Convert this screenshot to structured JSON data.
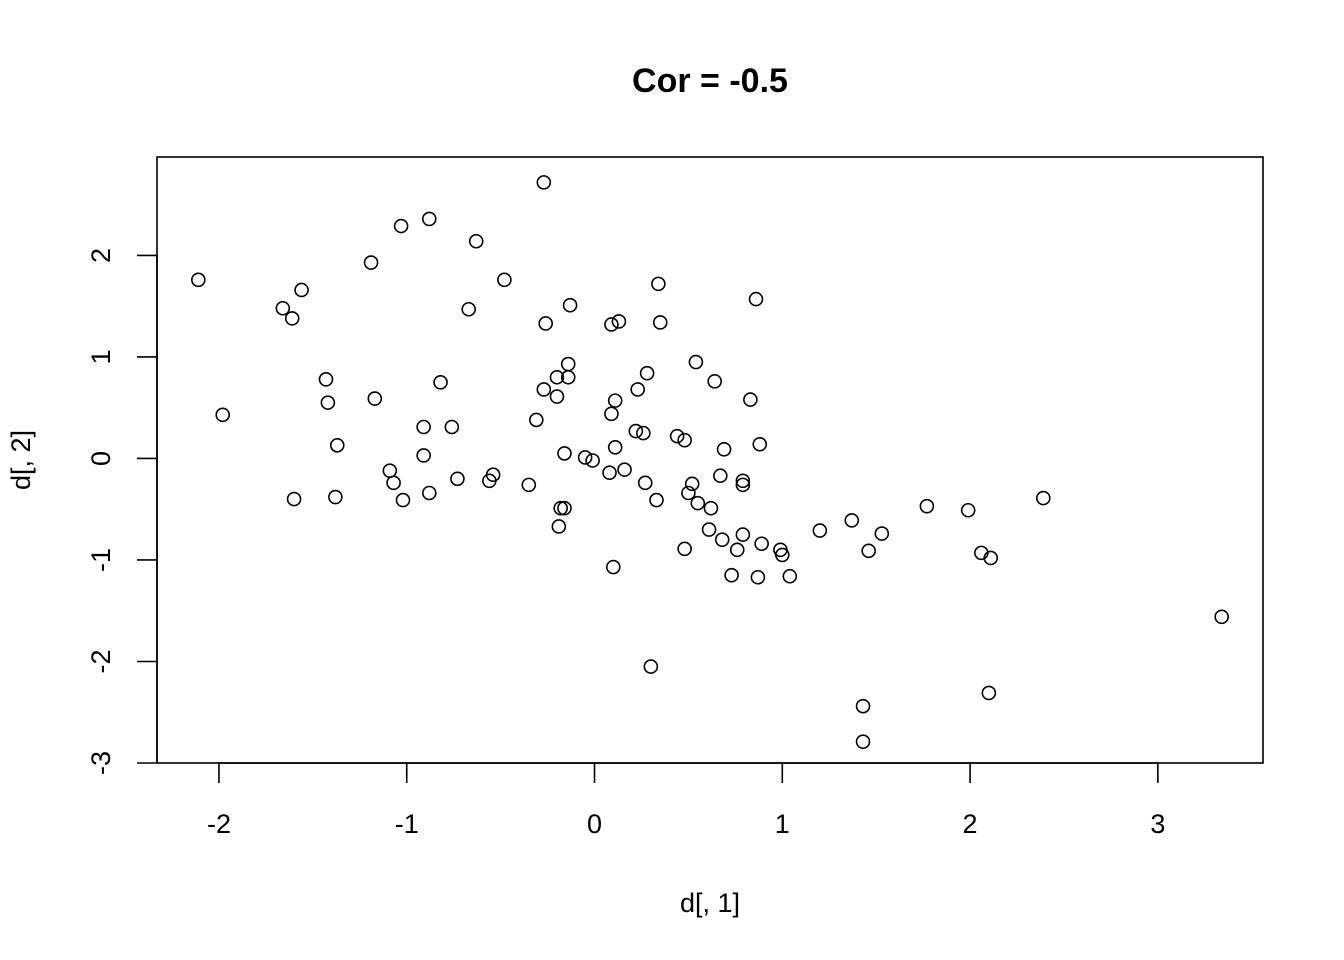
{
  "chart_data": {
    "type": "scatter",
    "title": "Cor = -0.5",
    "xlabel": "d[, 1]",
    "ylabel": "d[, 2]",
    "xlim": [
      -2.33,
      3.56
    ],
    "ylim": [
      -3.0,
      2.97
    ],
    "xticks": [
      -2,
      -1,
      0,
      1,
      2,
      3
    ],
    "xtick_labels": [
      "-2",
      "-1",
      "0",
      "1",
      "2",
      "3"
    ],
    "yticks": [
      -3,
      -2,
      -1,
      0,
      1,
      2
    ],
    "ytick_labels": [
      "-3",
      "-2",
      "-1",
      "0",
      "1",
      "2"
    ],
    "grid": false,
    "legend": "none",
    "marker": "open-circle",
    "points": [
      [
        -0.27,
        2.72
      ],
      [
        -0.88,
        2.36
      ],
      [
        -1.03,
        2.29
      ],
      [
        -0.63,
        2.14
      ],
      [
        -1.19,
        1.93
      ],
      [
        -2.11,
        1.76
      ],
      [
        -0.48,
        1.76
      ],
      [
        -1.56,
        1.66
      ],
      [
        -1.66,
        1.48
      ],
      [
        -1.61,
        1.38
      ],
      [
        -0.67,
        1.47
      ],
      [
        0.34,
        1.72
      ],
      [
        -0.13,
        1.51
      ],
      [
        0.86,
        1.57
      ],
      [
        -0.26,
        1.33
      ],
      [
        0.09,
        1.32
      ],
      [
        0.13,
        1.35
      ],
      [
        0.35,
        1.34
      ],
      [
        -0.14,
        0.93
      ],
      [
        0.54,
        0.95
      ],
      [
        -0.2,
        0.8
      ],
      [
        -0.14,
        0.8
      ],
      [
        -0.27,
        0.68
      ],
      [
        0.28,
        0.84
      ],
      [
        0.64,
        0.76
      ],
      [
        -1.43,
        0.78
      ],
      [
        -0.82,
        0.75
      ],
      [
        -0.2,
        0.61
      ],
      [
        0.23,
        0.68
      ],
      [
        0.11,
        0.57
      ],
      [
        0.83,
        0.58
      ],
      [
        -1.98,
        0.43
      ],
      [
        -1.42,
        0.55
      ],
      [
        -1.17,
        0.59
      ],
      [
        0.09,
        0.44
      ],
      [
        -0.31,
        0.38
      ],
      [
        -0.91,
        0.31
      ],
      [
        -0.76,
        0.31
      ],
      [
        0.22,
        0.27
      ],
      [
        0.26,
        0.25
      ],
      [
        0.44,
        0.22
      ],
      [
        0.48,
        0.18
      ],
      [
        -1.37,
        0.13
      ],
      [
        0.11,
        0.11
      ],
      [
        0.69,
        0.09
      ],
      [
        0.88,
        0.14
      ],
      [
        -0.91,
        0.03
      ],
      [
        -0.16,
        0.05
      ],
      [
        -0.05,
        0.01
      ],
      [
        -0.01,
        -0.02
      ],
      [
        -1.09,
        -0.12
      ],
      [
        -1.07,
        -0.24
      ],
      [
        -0.54,
        -0.16
      ],
      [
        -0.56,
        -0.22
      ],
      [
        -0.73,
        -0.2
      ],
      [
        0.08,
        -0.14
      ],
      [
        0.16,
        -0.11
      ],
      [
        0.67,
        -0.17
      ],
      [
        0.27,
        -0.24
      ],
      [
        -0.35,
        -0.26
      ],
      [
        0.52,
        -0.25
      ],
      [
        0.79,
        -0.22
      ],
      [
        0.79,
        -0.26
      ],
      [
        -1.6,
        -0.4
      ],
      [
        -1.38,
        -0.38
      ],
      [
        -1.02,
        -0.41
      ],
      [
        -0.88,
        -0.34
      ],
      [
        0.33,
        -0.41
      ],
      [
        0.5,
        -0.34
      ],
      [
        0.55,
        -0.44
      ],
      [
        -0.18,
        -0.49
      ],
      [
        -0.16,
        -0.49
      ],
      [
        0.62,
        -0.49
      ],
      [
        -0.19,
        -0.67
      ],
      [
        0.61,
        -0.7
      ],
      [
        0.79,
        -0.75
      ],
      [
        0.68,
        -0.8
      ],
      [
        0.89,
        -0.84
      ],
      [
        0.48,
        -0.89
      ],
      [
        0.76,
        -0.9
      ],
      [
        0.99,
        -0.9
      ],
      [
        1.0,
        -0.95
      ],
      [
        1.2,
        -0.71
      ],
      [
        1.37,
        -0.61
      ],
      [
        1.53,
        -0.74
      ],
      [
        1.46,
        -0.91
      ],
      [
        1.77,
        -0.47
      ],
      [
        1.99,
        -0.51
      ],
      [
        2.39,
        -0.39
      ],
      [
        2.06,
        -0.93
      ],
      [
        2.11,
        -0.98
      ],
      [
        0.1,
        -1.07
      ],
      [
        0.73,
        -1.15
      ],
      [
        0.87,
        -1.17
      ],
      [
        1.04,
        -1.16
      ],
      [
        3.34,
        -1.56
      ],
      [
        0.3,
        -2.05
      ],
      [
        1.43,
        -2.44
      ],
      [
        2.1,
        -2.31
      ],
      [
        1.43,
        -2.79
      ]
    ]
  }
}
